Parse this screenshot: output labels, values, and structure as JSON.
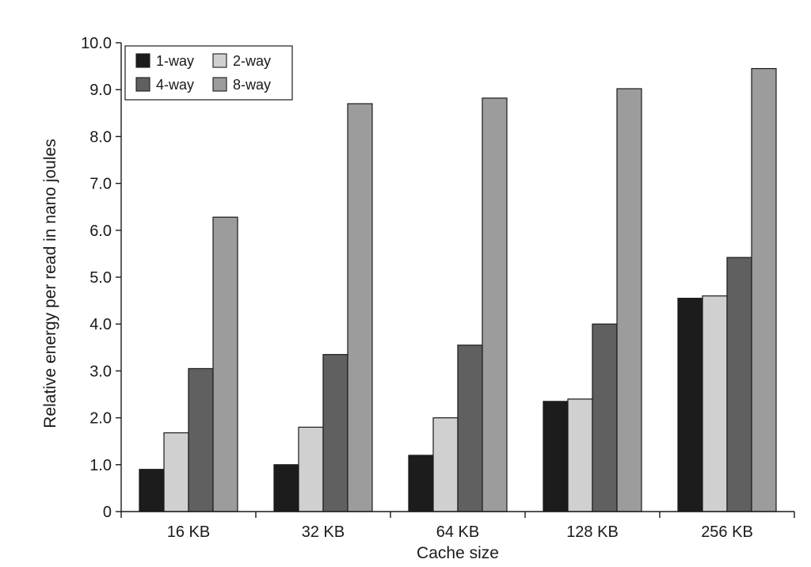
{
  "chart_data": {
    "type": "bar",
    "title": "",
    "xlabel": "Cache size",
    "ylabel": "Relative energy per read in nano joules",
    "categories": [
      "16 KB",
      "32 KB",
      "64 KB",
      "128 KB",
      "256 KB"
    ],
    "series": [
      {
        "name": "1-way",
        "color": "#1c1c1c",
        "values": [
          0.9,
          1.0,
          1.2,
          2.35,
          4.55
        ]
      },
      {
        "name": "2-way",
        "color": "#d0d0d0",
        "values": [
          1.68,
          1.8,
          2.0,
          2.4,
          4.6
        ]
      },
      {
        "name": "4-way",
        "color": "#606060",
        "values": [
          3.05,
          3.35,
          3.55,
          4.0,
          5.42
        ]
      },
      {
        "name": "8-way",
        "color": "#9c9c9c",
        "values": [
          6.28,
          8.7,
          8.82,
          9.02,
          9.45
        ]
      }
    ],
    "ylim": [
      0,
      10
    ],
    "yticks": [
      "0",
      "1.0",
      "2.0",
      "3.0",
      "4.0",
      "5.0",
      "6.0",
      "7.0",
      "8.0",
      "9.0",
      "10.0"
    ],
    "grid": false,
    "legend": {
      "placement": "top-left",
      "columns": 2
    }
  }
}
